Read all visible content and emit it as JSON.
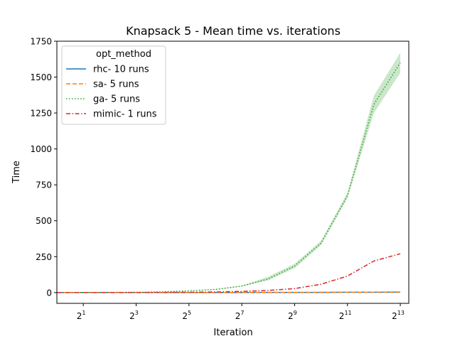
{
  "chart_data": {
    "type": "line",
    "title": "Knapsack 5 - Mean time vs. iterations",
    "xlabel": "Iteration",
    "ylabel": "Time",
    "x_scale": "log2",
    "xlim": [
      1,
      10240
    ],
    "ylim": [
      -75,
      1750
    ],
    "x_ticks": [
      {
        "value": 2,
        "base": "2",
        "exp": "1"
      },
      {
        "value": 8,
        "base": "2",
        "exp": "3"
      },
      {
        "value": 32,
        "base": "2",
        "exp": "5"
      },
      {
        "value": 128,
        "base": "2",
        "exp": "7"
      },
      {
        "value": 512,
        "base": "2",
        "exp": "9"
      },
      {
        "value": 2048,
        "base": "2",
        "exp": "11"
      },
      {
        "value": 8192,
        "base": "2",
        "exp": "13"
      }
    ],
    "y_ticks": [
      0,
      250,
      500,
      750,
      1000,
      1250,
      1500,
      1750
    ],
    "grid": false,
    "legend_title": "opt_method",
    "legend_position": "top-left",
    "x": [
      1,
      2,
      4,
      8,
      16,
      32,
      64,
      128,
      256,
      512,
      1024,
      2048,
      4096,
      8192
    ],
    "series": [
      {
        "name": "rhc- 10 runs",
        "color": "#1f77b4",
        "dash": "solid",
        "values": [
          0,
          0,
          0,
          0,
          0,
          0,
          0,
          0,
          1,
          1,
          1,
          2,
          2,
          3
        ]
      },
      {
        "name": "sa- 5 runs",
        "color": "#ff7f0e",
        "dash": "dashed",
        "values": [
          0,
          0,
          0,
          0,
          0,
          0,
          0,
          1,
          1,
          1,
          2,
          2,
          3,
          4
        ]
      },
      {
        "name": "ga- 5 runs",
        "color": "#2ca02c",
        "dash": "dotted",
        "values": [
          0,
          0,
          1,
          2,
          5,
          12,
          22,
          45,
          95,
          185,
          345,
          675,
          1310,
          1600
        ],
        "ci_low": [
          0,
          0,
          1,
          2,
          5,
          11,
          20,
          42,
          85,
          170,
          330,
          655,
          1250,
          1530
        ],
        "ci_high": [
          0,
          0,
          1,
          2,
          5,
          13,
          24,
          48,
          110,
          200,
          360,
          695,
          1370,
          1670
        ]
      },
      {
        "name": "mimic- 1 runs",
        "color": "#d62728",
        "dash": "dashdot",
        "values": [
          0,
          0,
          0,
          0,
          1,
          2,
          4,
          8,
          15,
          28,
          58,
          115,
          220,
          270
        ]
      }
    ]
  }
}
